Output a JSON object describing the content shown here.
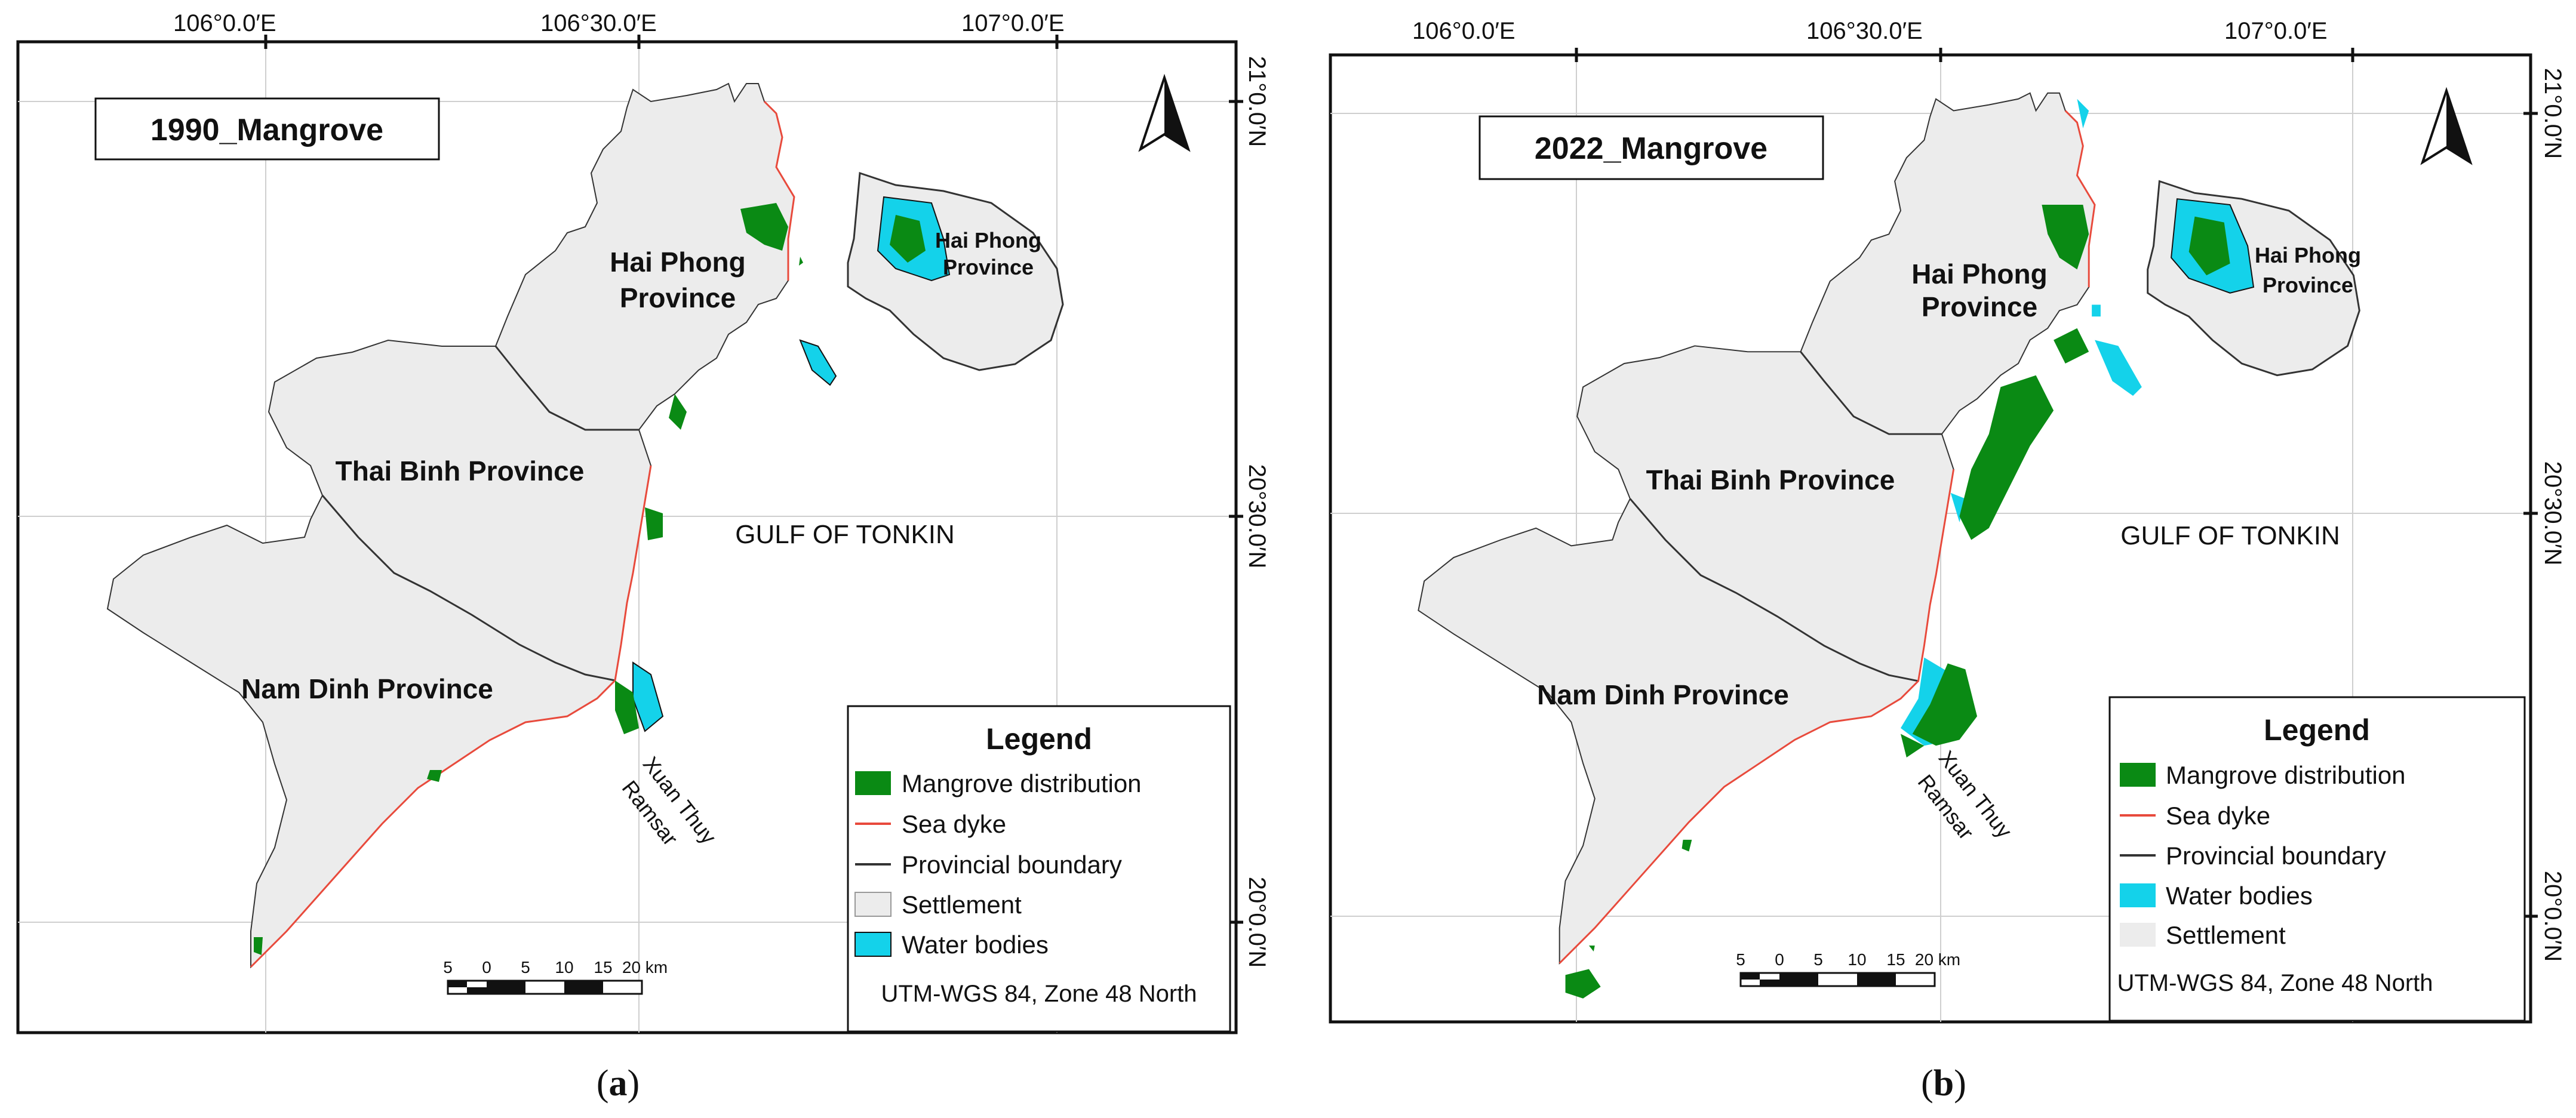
{
  "colors": {
    "mangrove": "#0a8a14",
    "sea_dyke": "#e84a3c",
    "boundary": "#333333",
    "settlement": "#ececec",
    "water": "#14d2ea"
  },
  "panels": [
    {
      "title": "1990_Mangrove",
      "label_open": "(",
      "label_letter": "a",
      "label_close": ")",
      "lon_ticks": [
        "106°0.0′E",
        "106°30.0′E",
        "107°0.0′E"
      ],
      "lat_ticks": [
        "21°0.0′N",
        "20°30.0′N",
        "20°0.0′N"
      ],
      "provinces": {
        "hai_phong": [
          "Hai Phong",
          "Province"
        ],
        "hai_phong_island": [
          "Hai Phong",
          "Province"
        ],
        "thai_binh": "Thai Binh Province",
        "nam_dinh": "Nam Dinh Province"
      },
      "gulf": "GULF OF TONKIN",
      "ramsar": [
        "Xuan Thuy",
        "Ramsar"
      ],
      "legend": {
        "title": "Legend",
        "items": [
          {
            "label": "Mangrove distribution",
            "kind": "mangrove"
          },
          {
            "label": "Sea dyke",
            "kind": "sea_dyke"
          },
          {
            "label": "Provincial boundary",
            "kind": "boundary"
          },
          {
            "label": "Settlement",
            "kind": "settlement"
          },
          {
            "label": "Water bodies",
            "kind": "water"
          }
        ],
        "scale_labels": [
          "5",
          "0",
          "5",
          "10",
          "15",
          "20 km"
        ],
        "projection": "UTM-WGS 84, Zone 48 North"
      }
    },
    {
      "title": "2022_Mangrove",
      "label_open": "(",
      "label_letter": "b",
      "label_close": ")",
      "lon_ticks": [
        "106°0.0′E",
        "106°30.0′E",
        "107°0.0′E"
      ],
      "lat_ticks": [
        "21°0.0′N",
        "20°30.0′N",
        "20°0.0′N"
      ],
      "provinces": {
        "hai_phong": [
          "Hai Phong",
          "Province"
        ],
        "hai_phong_island": [
          "Hai Phong",
          "Province"
        ],
        "thai_binh": "Thai Binh Province",
        "nam_dinh": "Nam Dinh Province"
      },
      "gulf": "GULF OF TONKIN",
      "ramsar": [
        "Xuan Thuy",
        "Ramsar"
      ],
      "legend": {
        "title": "Legend",
        "items": [
          {
            "label": "Mangrove distribution",
            "kind": "mangrove"
          },
          {
            "label": "Sea dyke",
            "kind": "sea_dyke"
          },
          {
            "label": "Provincial boundary",
            "kind": "boundary"
          },
          {
            "label": "Water bodies",
            "kind": "water"
          },
          {
            "label": "Settlement",
            "kind": "settlement"
          }
        ],
        "scale_labels": [
          "5",
          "0",
          "5",
          "10",
          "15",
          "20 km"
        ],
        "projection": "UTM-WGS 84, Zone 48 North"
      }
    }
  ]
}
